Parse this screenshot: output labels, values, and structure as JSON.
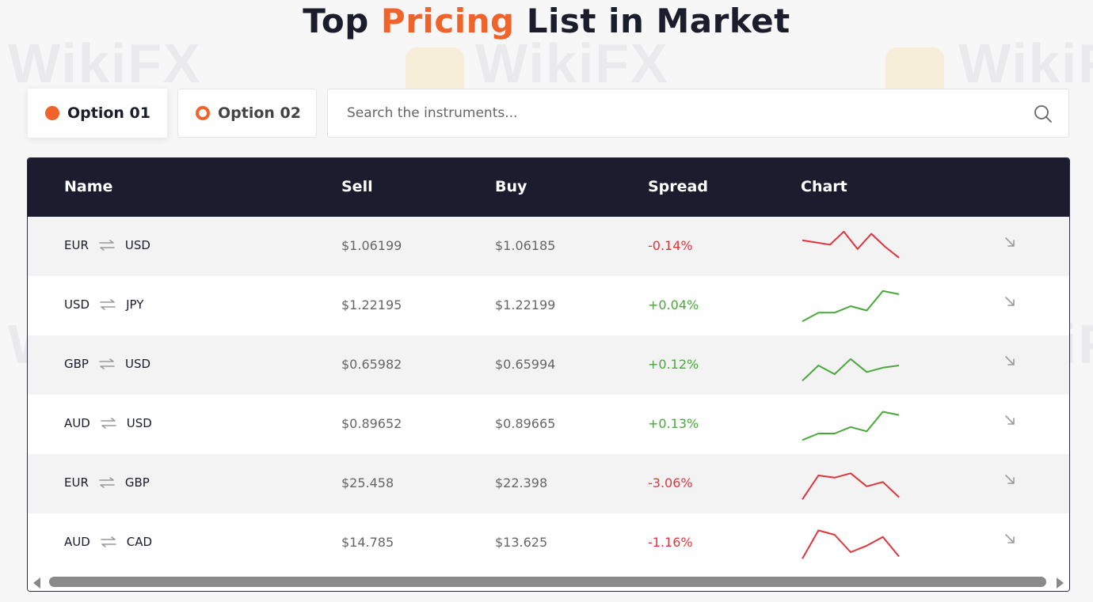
{
  "page": {
    "title_start": "Top ",
    "title_accent": "Pricing",
    "title_end": " List in Market",
    "watermark": "WikiFX"
  },
  "options": [
    {
      "label": "Option 01",
      "selected": true
    },
    {
      "label": "Option 02",
      "selected": false
    }
  ],
  "search": {
    "placeholder": "Search the instruments...",
    "value": ""
  },
  "table": {
    "headers": {
      "name": "Name",
      "sell": "Sell",
      "buy": "Buy",
      "spread": "Spread",
      "chart": "Chart"
    },
    "rows": [
      {
        "base": "EUR",
        "quote": "USD",
        "sell": "$1.06199",
        "buy": "$1.06185",
        "spread": "-0.14%",
        "trend": "down",
        "spark": [
          50,
          48,
          46,
          58,
          42,
          56,
          44,
          34
        ]
      },
      {
        "base": "USD",
        "quote": "JPY",
        "sell": "$1.22195",
        "buy": "$1.22199",
        "spread": "+0.04%",
        "trend": "up",
        "spark": [
          30,
          38,
          38,
          44,
          40,
          58,
          55
        ]
      },
      {
        "base": "GBP",
        "quote": "USD",
        "sell": "$0.65982",
        "buy": "$0.65994",
        "spread": "+0.12%",
        "trend": "up",
        "spark": [
          30,
          44,
          36,
          50,
          38,
          42,
          44
        ]
      },
      {
        "base": "AUD",
        "quote": "USD",
        "sell": "$0.89652",
        "buy": "$0.89665",
        "spread": "+0.13%",
        "trend": "up",
        "spark": [
          30,
          36,
          36,
          42,
          38,
          56,
          53
        ]
      },
      {
        "base": "EUR",
        "quote": "GBP",
        "sell": "$25.458",
        "buy": "$22.398",
        "spread": "-3.06%",
        "trend": "down",
        "spark": [
          30,
          52,
          50,
          54,
          42,
          46,
          32
        ]
      },
      {
        "base": "AUD",
        "quote": "CAD",
        "sell": "$14.785",
        "buy": "$13.625",
        "spread": "-1.16%",
        "trend": "down",
        "spark": [
          30,
          56,
          52,
          36,
          42,
          50,
          32
        ]
      }
    ]
  },
  "colors": {
    "accent": "#f0632a",
    "header_bg": "#1b1c2e",
    "negative": "#e0343d",
    "positive": "#49a83a"
  },
  "icons": {
    "search": "search-icon",
    "swap": "swap-arrows-icon",
    "row_action": "arrow-down-right-icon"
  }
}
